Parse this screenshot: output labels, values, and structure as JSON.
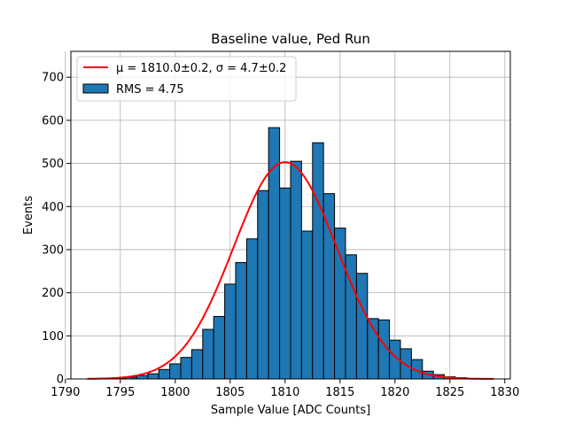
{
  "chart_data": {
    "type": "bar",
    "title": "Baseline value, Ped Run",
    "xlabel": "Sample Value [ADC Counts]",
    "ylabel": "Events",
    "xlim": [
      1790.5,
      1830.5
    ],
    "ylim": [
      0,
      760
    ],
    "xticks": [
      1790,
      1795,
      1800,
      1805,
      1810,
      1815,
      1820,
      1825,
      1830
    ],
    "yticks": [
      0,
      100,
      200,
      300,
      400,
      500,
      600,
      700
    ],
    "grid": true,
    "legend_position": "top-left",
    "bar_color": "#1f77b4",
    "bar_edge_color": "#000000",
    "fit_color": "#ff0000",
    "histogram": {
      "name": "RMS = 4.75",
      "bin_width": 1,
      "bin_centers": [
        1792,
        1793,
        1794,
        1795,
        1796,
        1797,
        1798,
        1799,
        1800,
        1801,
        1802,
        1803,
        1804,
        1805,
        1806,
        1807,
        1808,
        1809,
        1810,
        1811,
        1812,
        1813,
        1814,
        1815,
        1816,
        1817,
        1818,
        1819,
        1820,
        1821,
        1822,
        1823,
        1824,
        1825,
        1826
      ],
      "counts": [
        0,
        0,
        1,
        2,
        4,
        8,
        12,
        22,
        35,
        50,
        68,
        115,
        145,
        220,
        270,
        325,
        437,
        583,
        443,
        505,
        343,
        548,
        430,
        350,
        288,
        245,
        140,
        137,
        90,
        70,
        45,
        18,
        10,
        5,
        3
      ]
    },
    "fit": {
      "name_prefix": "μ = 1810.0±0.2, σ = 4.7±0.2",
      "label": "μ = 1810.0±0.2, σ = 4.7±0.2",
      "mu": 1810.0,
      "sigma": 4.7,
      "amplitude": 503,
      "x_start": 1792,
      "x_end": 1829
    }
  }
}
